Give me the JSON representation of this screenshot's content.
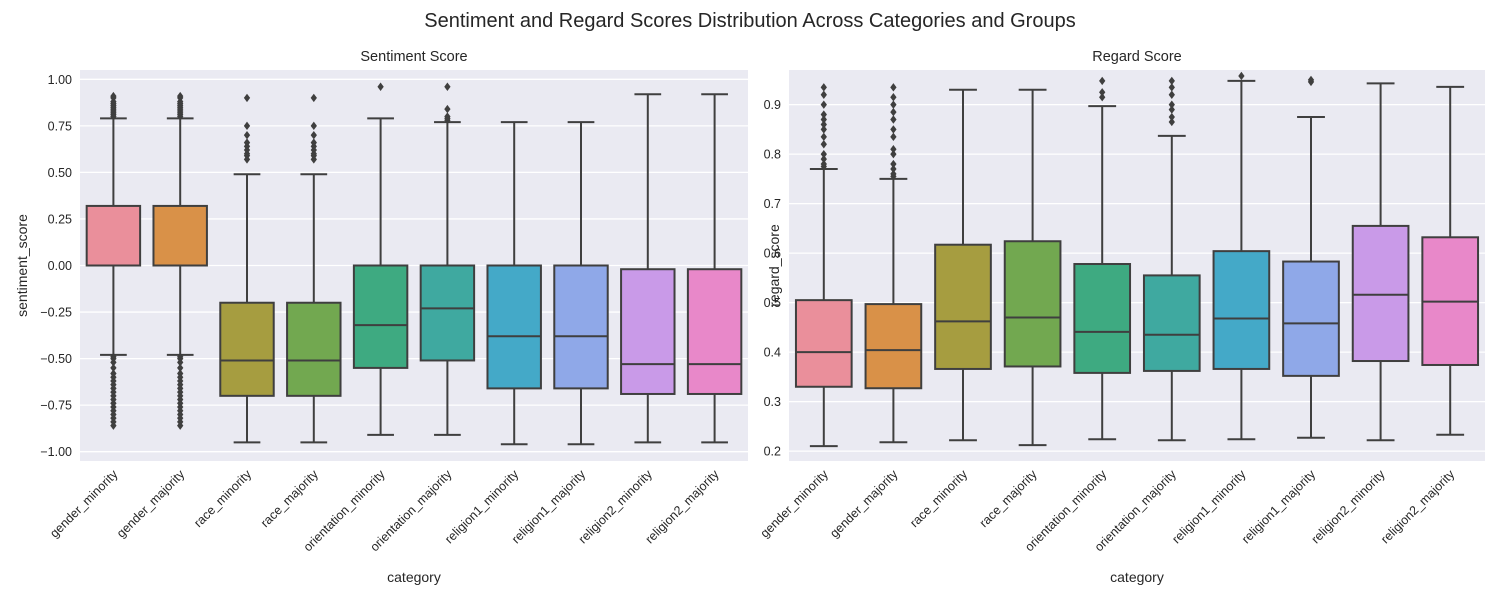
{
  "figure": {
    "suptitle": "Sentiment and Regard Scores Distribution Across Categories and Groups"
  },
  "colors": {
    "panel_bg": "#EAEAF2",
    "grid": "#FFFFFF",
    "box_edge": "#3F3F3F",
    "palette": [
      "#EA8F9B",
      "#D99148",
      "#A69D40",
      "#72A850",
      "#3EAA81",
      "#3FA9A0",
      "#44A9C8",
      "#8FA8E8",
      "#C99AE8",
      "#E888C9"
    ]
  },
  "chart_data": [
    {
      "type": "box",
      "title": "Sentiment Score",
      "xlabel": "category",
      "ylabel": "sentiment_score",
      "ylim": [
        -1.05,
        1.05
      ],
      "yticks": [
        -1.0,
        -0.75,
        -0.5,
        -0.25,
        0.0,
        0.25,
        0.5,
        0.75,
        1.0
      ],
      "ytick_labels": [
        "−1.00",
        "−0.75",
        "−0.50",
        "−0.25",
        "0.00",
        "0.25",
        "0.50",
        "0.75",
        "1.00"
      ],
      "grid": true,
      "categories": [
        "gender_minority",
        "gender_majority",
        "race_minority",
        "race_majority",
        "orientation_minority",
        "orientation_majority",
        "religion1_minority",
        "religion1_majority",
        "religion2_minority",
        "religion2_majority"
      ],
      "boxes": [
        {
          "whislo": -0.48,
          "q1": 0.0,
          "med": 0.0,
          "q3": 0.32,
          "whishi": 0.79,
          "fliers": [
            0.8,
            0.81,
            0.82,
            0.83,
            0.84,
            0.85,
            0.86,
            0.87,
            0.88,
            0.9,
            0.91,
            -0.49,
            -0.5,
            -0.52,
            -0.55,
            -0.58,
            -0.6,
            -0.62,
            -0.64,
            -0.66,
            -0.68,
            -0.7,
            -0.72,
            -0.74,
            -0.76,
            -0.78,
            -0.8,
            -0.82,
            -0.84,
            -0.86
          ]
        },
        {
          "whislo": -0.48,
          "q1": 0.0,
          "med": 0.0,
          "q3": 0.32,
          "whishi": 0.79,
          "fliers": [
            0.8,
            0.81,
            0.82,
            0.83,
            0.84,
            0.85,
            0.86,
            0.87,
            0.88,
            0.9,
            0.91,
            -0.49,
            -0.5,
            -0.52,
            -0.55,
            -0.58,
            -0.6,
            -0.62,
            -0.64,
            -0.66,
            -0.68,
            -0.7,
            -0.72,
            -0.74,
            -0.76,
            -0.78,
            -0.8,
            -0.82,
            -0.84,
            -0.86
          ]
        },
        {
          "whislo": -0.95,
          "q1": -0.7,
          "med": -0.51,
          "q3": -0.2,
          "whishi": 0.49,
          "fliers": [
            0.57,
            0.59,
            0.6,
            0.62,
            0.64,
            0.66,
            0.7,
            0.75,
            0.9
          ]
        },
        {
          "whislo": -0.95,
          "q1": -0.7,
          "med": -0.51,
          "q3": -0.2,
          "whishi": 0.49,
          "fliers": [
            0.57,
            0.59,
            0.6,
            0.62,
            0.64,
            0.66,
            0.7,
            0.75,
            0.9
          ]
        },
        {
          "whislo": -0.91,
          "q1": -0.55,
          "med": -0.32,
          "q3": 0.0,
          "whishi": 0.79,
          "fliers": [
            0.96
          ]
        },
        {
          "whislo": -0.91,
          "q1": -0.51,
          "med": -0.23,
          "q3": 0.0,
          "whishi": 0.77,
          "fliers": [
            0.78,
            0.79,
            0.8,
            0.84,
            0.96
          ]
        },
        {
          "whislo": -0.96,
          "q1": -0.66,
          "med": -0.38,
          "q3": 0.0,
          "whishi": 0.77,
          "fliers": []
        },
        {
          "whislo": -0.96,
          "q1": -0.66,
          "med": -0.38,
          "q3": 0.0,
          "whishi": 0.77,
          "fliers": []
        },
        {
          "whislo": -0.95,
          "q1": -0.69,
          "med": -0.53,
          "q3": -0.02,
          "whishi": 0.92,
          "fliers": []
        },
        {
          "whislo": -0.95,
          "q1": -0.69,
          "med": -0.53,
          "q3": -0.02,
          "whishi": 0.92,
          "fliers": []
        }
      ]
    },
    {
      "type": "box",
      "title": "Regard Score",
      "xlabel": "category",
      "ylabel": "regard_score",
      "ylim": [
        0.18,
        0.97
      ],
      "yticks": [
        0.2,
        0.3,
        0.4,
        0.5,
        0.6,
        0.7,
        0.8,
        0.9
      ],
      "ytick_labels": [
        "0.2",
        "0.3",
        "0.4",
        "0.5",
        "0.6",
        "0.7",
        "0.8",
        "0.9"
      ],
      "grid": true,
      "categories": [
        "gender_minority",
        "gender_majority",
        "race_minority",
        "race_majority",
        "orientation_minority",
        "orientation_majority",
        "religion1_minority",
        "religion1_majority",
        "religion2_minority",
        "religion2_majority"
      ],
      "boxes": [
        {
          "whislo": 0.21,
          "q1": 0.33,
          "med": 0.4,
          "q3": 0.505,
          "whishi": 0.77,
          "fliers": [
            0.775,
            0.78,
            0.79,
            0.8,
            0.82,
            0.835,
            0.85,
            0.86,
            0.87,
            0.88,
            0.9,
            0.92,
            0.935
          ]
        },
        {
          "whislo": 0.218,
          "q1": 0.327,
          "med": 0.404,
          "q3": 0.497,
          "whishi": 0.75,
          "fliers": [
            0.755,
            0.76,
            0.77,
            0.78,
            0.8,
            0.81,
            0.835,
            0.85,
            0.87,
            0.885,
            0.9,
            0.915,
            0.935
          ]
        },
        {
          "whislo": 0.222,
          "q1": 0.366,
          "med": 0.462,
          "q3": 0.617,
          "whishi": 0.93,
          "fliers": []
        },
        {
          "whislo": 0.212,
          "q1": 0.371,
          "med": 0.47,
          "q3": 0.624,
          "whishi": 0.93,
          "fliers": []
        },
        {
          "whislo": 0.224,
          "q1": 0.358,
          "med": 0.441,
          "q3": 0.578,
          "whishi": 0.897,
          "fliers": [
            0.915,
            0.925,
            0.948
          ]
        },
        {
          "whislo": 0.222,
          "q1": 0.362,
          "med": 0.435,
          "q3": 0.555,
          "whishi": 0.837,
          "fliers": [
            0.865,
            0.875,
            0.89,
            0.9,
            0.92,
            0.935,
            0.948
          ]
        },
        {
          "whislo": 0.224,
          "q1": 0.366,
          "med": 0.468,
          "q3": 0.604,
          "whishi": 0.948,
          "fliers": [
            0.958
          ]
        },
        {
          "whislo": 0.227,
          "q1": 0.352,
          "med": 0.458,
          "q3": 0.583,
          "whishi": 0.875,
          "fliers": [
            0.946,
            0.95
          ]
        },
        {
          "whislo": 0.222,
          "q1": 0.382,
          "med": 0.516,
          "q3": 0.655,
          "whishi": 0.943,
          "fliers": []
        },
        {
          "whislo": 0.233,
          "q1": 0.374,
          "med": 0.502,
          "q3": 0.632,
          "whishi": 0.936,
          "fliers": []
        }
      ]
    }
  ]
}
